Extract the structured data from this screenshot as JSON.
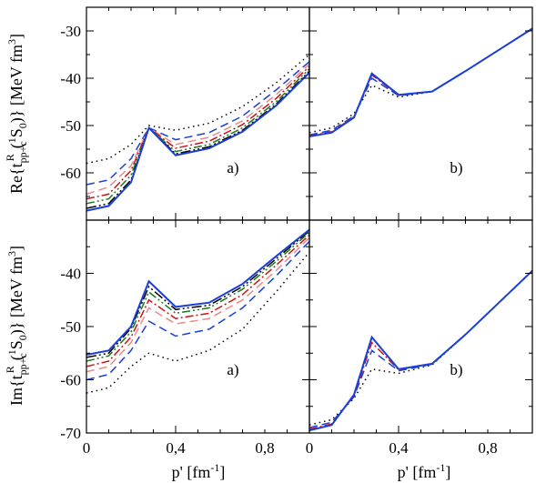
{
  "chart_data": {
    "type": "line",
    "x_ticks": [
      "0",
      "0,4",
      "0,8"
    ],
    "x_tick_values": [
      0,
      0.4,
      0.8
    ],
    "xlabel": "p' [fm-1]",
    "xlabel_parts": {
      "main": "p' [fm",
      "sup": "-1",
      "close": "]"
    },
    "ylabel_re": "Re{tpp+cR(1S0)} [MeV fm3]",
    "ylabel_im": "Im{tpp+cR(1S0)} [MeV fm3]",
    "ylabel_re_parts": {
      "pre": "Re{t",
      "sub": "pp+c",
      "sup": "R",
      "sup2": "1",
      "mid": "(",
      "sub2": "S",
      "sub3": "0",
      "post": ")} [MeV fm",
      "sup3": "3",
      "end": "]"
    },
    "ylabel_im_parts": {
      "pre": "Im{t",
      "sub": "pp+c",
      "sup": "R",
      "sup2": "1",
      "mid": "(",
      "sub2": "S",
      "sub3": "0",
      "post": ")} [MeV fm",
      "sup3": "3",
      "end": "]"
    },
    "panels": [
      {
        "label": "a)",
        "row": 0,
        "col": 0,
        "xlim": [
          0,
          1.0
        ],
        "ylim": [
          -70,
          -25
        ],
        "y_ticks": [
          -60,
          -50,
          -40,
          -30
        ],
        "series": [
          {
            "color": "#000000",
            "dash": "1.5,4",
            "points": [
              [
                0,
                -58
              ],
              [
                0.1,
                -57
              ],
              [
                0.2,
                -54
              ],
              [
                0.28,
                -50
              ],
              [
                0.4,
                -51
              ],
              [
                0.55,
                -49.5
              ],
              [
                0.7,
                -46
              ],
              [
                0.85,
                -41
              ],
              [
                1.0,
                -35
              ]
            ]
          },
          {
            "color": "#1a3fd6",
            "dash": "9,5",
            "points": [
              [
                0,
                -62.5
              ],
              [
                0.1,
                -61.5
              ],
              [
                0.2,
                -57
              ],
              [
                0.28,
                -50.5
              ],
              [
                0.4,
                -53
              ],
              [
                0.55,
                -51.5
              ],
              [
                0.7,
                -48
              ],
              [
                0.85,
                -42.5
              ],
              [
                1.0,
                -36.5
              ]
            ]
          },
          {
            "color": "#e88a88",
            "dash": "9,5",
            "points": [
              [
                0,
                -64.5
              ],
              [
                0.1,
                -63
              ],
              [
                0.2,
                -58.5
              ],
              [
                0.28,
                -50.5
              ],
              [
                0.4,
                -54
              ],
              [
                0.55,
                -52.5
              ],
              [
                0.7,
                -49
              ],
              [
                0.85,
                -43.5
              ],
              [
                1.0,
                -37
              ]
            ]
          },
          {
            "color": "#cc1111",
            "dash": "9,3,2,3",
            "points": [
              [
                0,
                -65.5
              ],
              [
                0.1,
                -64.5
              ],
              [
                0.2,
                -59.5
              ],
              [
                0.28,
                -50.5
              ],
              [
                0.4,
                -54.8
              ],
              [
                0.55,
                -53.3
              ],
              [
                0.7,
                -49.8
              ],
              [
                0.85,
                -44.3
              ],
              [
                1.0,
                -37.5
              ]
            ]
          },
          {
            "color": "#1b7a1b",
            "dash": "9,3,2,3,2,3",
            "points": [
              [
                0,
                -66.5
              ],
              [
                0.1,
                -65.5
              ],
              [
                0.2,
                -60.5
              ],
              [
                0.28,
                -50.5
              ],
              [
                0.4,
                -55.5
              ],
              [
                0.55,
                -54
              ],
              [
                0.7,
                -50.5
              ],
              [
                0.85,
                -45
              ],
              [
                1.0,
                -38
              ]
            ]
          },
          {
            "color": "#000000",
            "dash": "11,3,2,3,2,3",
            "points": [
              [
                0,
                -67.5
              ],
              [
                0.1,
                -66.5
              ],
              [
                0.2,
                -61.5
              ],
              [
                0.28,
                -50.5
              ],
              [
                0.4,
                -56
              ],
              [
                0.55,
                -54.5
              ],
              [
                0.7,
                -51
              ],
              [
                0.85,
                -45.5
              ],
              [
                1.0,
                -38.5
              ]
            ]
          },
          {
            "color": "#1a3fd6",
            "dash": "",
            "points": [
              [
                0,
                -68
              ],
              [
                0.1,
                -67
              ],
              [
                0.2,
                -62
              ],
              [
                0.28,
                -50.5
              ],
              [
                0.4,
                -56.3
              ],
              [
                0.55,
                -54.8
              ],
              [
                0.7,
                -51.3
              ],
              [
                0.85,
                -45.8
              ],
              [
                1.0,
                -38.8
              ]
            ]
          }
        ]
      },
      {
        "label": "b)",
        "row": 0,
        "col": 1,
        "xlim": [
          0,
          1.0
        ],
        "ylim": [
          -70,
          -25
        ],
        "y_ticks": [
          -60,
          -50,
          -40,
          -30
        ],
        "series": [
          {
            "color": "#000000",
            "dash": "1.5,4",
            "points": [
              [
                0,
                -51.5
              ],
              [
                0.1,
                -50.5
              ],
              [
                0.2,
                -47.5
              ],
              [
                0.28,
                -41.5
              ],
              [
                0.4,
                -44
              ],
              [
                0.55,
                -42.8
              ],
              [
                0.7,
                -38.5
              ],
              [
                0.85,
                -34
              ],
              [
                1.0,
                -29.5
              ]
            ]
          },
          {
            "color": "#1a3fd6",
            "dash": "9,5",
            "points": [
              [
                0,
                -52
              ],
              [
                0.1,
                -51
              ],
              [
                0.2,
                -48
              ],
              [
                0.28,
                -40
              ],
              [
                0.4,
                -43.7
              ],
              [
                0.55,
                -42.8
              ],
              [
                0.7,
                -38.5
              ],
              [
                0.85,
                -34
              ],
              [
                1.0,
                -29.5
              ]
            ]
          },
          {
            "color": "#cc1111",
            "dash": "9,3,2,3",
            "points": [
              [
                0,
                -52.2
              ],
              [
                0.1,
                -51.3
              ],
              [
                0.2,
                -48.2
              ],
              [
                0.28,
                -39.3
              ],
              [
                0.4,
                -43.6
              ],
              [
                0.55,
                -42.8
              ],
              [
                0.7,
                -38.5
              ],
              [
                0.85,
                -34
              ],
              [
                1.0,
                -29.5
              ]
            ]
          },
          {
            "color": "#1a3fd6",
            "dash": "",
            "points": [
              [
                0,
                -52.3
              ],
              [
                0.1,
                -51.5
              ],
              [
                0.2,
                -48.3
              ],
              [
                0.28,
                -39
              ],
              [
                0.4,
                -43.5
              ],
              [
                0.55,
                -42.8
              ],
              [
                0.7,
                -38.5
              ],
              [
                0.85,
                -34
              ],
              [
                1.0,
                -29.5
              ]
            ]
          }
        ]
      },
      {
        "label": "a)",
        "row": 1,
        "col": 0,
        "xlim": [
          0,
          1.0
        ],
        "ylim": [
          -70,
          -30
        ],
        "y_ticks": [
          -70,
          -60,
          -50,
          -40
        ],
        "series": [
          {
            "color": "#000000",
            "dash": "1.5,4",
            "points": [
              [
                0,
                -62.5
              ],
              [
                0.1,
                -61.5
              ],
              [
                0.2,
                -57.5
              ],
              [
                0.28,
                -55
              ],
              [
                0.4,
                -56.5
              ],
              [
                0.55,
                -54.5
              ],
              [
                0.7,
                -50.5
              ],
              [
                0.85,
                -43.5
              ],
              [
                1.0,
                -36
              ]
            ]
          },
          {
            "color": "#1a3fd6",
            "dash": "9,5",
            "points": [
              [
                0,
                -60
              ],
              [
                0.1,
                -59
              ],
              [
                0.2,
                -54.5
              ],
              [
                0.28,
                -49
              ],
              [
                0.4,
                -51.8
              ],
              [
                0.55,
                -50.5
              ],
              [
                0.7,
                -46.5
              ],
              [
                0.85,
                -40.5
              ],
              [
                1.0,
                -34
              ]
            ]
          },
          {
            "color": "#e88a88",
            "dash": "9,5",
            "points": [
              [
                0,
                -58.5
              ],
              [
                0.1,
                -57.5
              ],
              [
                0.2,
                -53
              ],
              [
                0.28,
                -46.5
              ],
              [
                0.4,
                -49.5
              ],
              [
                0.55,
                -48.5
              ],
              [
                0.7,
                -45
              ],
              [
                0.85,
                -39.5
              ],
              [
                1.0,
                -33.3
              ]
            ]
          },
          {
            "color": "#cc1111",
            "dash": "9,3,2,3",
            "points": [
              [
                0,
                -57.5
              ],
              [
                0.1,
                -56.5
              ],
              [
                0.2,
                -52
              ],
              [
                0.28,
                -45
              ],
              [
                0.4,
                -48.5
              ],
              [
                0.55,
                -47.5
              ],
              [
                0.7,
                -44
              ],
              [
                0.85,
                -38.5
              ],
              [
                1.0,
                -32.8
              ]
            ]
          },
          {
            "color": "#1b7a1b",
            "dash": "9,3,2,3,2,3",
            "points": [
              [
                0,
                -56.5
              ],
              [
                0.1,
                -55.5
              ],
              [
                0.2,
                -51
              ],
              [
                0.28,
                -43.5
              ],
              [
                0.4,
                -47.5
              ],
              [
                0.55,
                -46.5
              ],
              [
                0.7,
                -43
              ],
              [
                0.85,
                -37.8
              ],
              [
                1.0,
                -32.3
              ]
            ]
          },
          {
            "color": "#000000",
            "dash": "11,3,2,3,2,3",
            "points": [
              [
                0,
                -55.8
              ],
              [
                0.1,
                -55
              ],
              [
                0.2,
                -50.3
              ],
              [
                0.28,
                -42.5
              ],
              [
                0.4,
                -46.8
              ],
              [
                0.55,
                -46
              ],
              [
                0.7,
                -42.5
              ],
              [
                0.85,
                -37.3
              ],
              [
                1.0,
                -32
              ]
            ]
          },
          {
            "color": "#1a3fd6",
            "dash": "",
            "points": [
              [
                0,
                -55.3
              ],
              [
                0.1,
                -54.5
              ],
              [
                0.2,
                -50
              ],
              [
                0.28,
                -41.5
              ],
              [
                0.4,
                -46.3
              ],
              [
                0.55,
                -45.5
              ],
              [
                0.7,
                -42
              ],
              [
                0.85,
                -36.8
              ],
              [
                1.0,
                -31.8
              ]
            ]
          }
        ]
      },
      {
        "label": "b)",
        "row": 1,
        "col": 1,
        "xlim": [
          0,
          1.0
        ],
        "ylim": [
          -70,
          -30
        ],
        "y_ticks": [
          -70,
          -60,
          -50,
          -40
        ],
        "series": [
          {
            "color": "#000000",
            "dash": "1.5,4",
            "points": [
              [
                0,
                -68.5
              ],
              [
                0.1,
                -67.5
              ],
              [
                0.2,
                -63.5
              ],
              [
                0.28,
                -58
              ],
              [
                0.4,
                -58.8
              ],
              [
                0.55,
                -57.2
              ],
              [
                0.7,
                -51.5
              ],
              [
                0.85,
                -45.5
              ],
              [
                1.0,
                -39.5
              ]
            ]
          },
          {
            "color": "#1a3fd6",
            "dash": "9,5",
            "points": [
              [
                0,
                -69
              ],
              [
                0.1,
                -68
              ],
              [
                0.2,
                -63.2
              ],
              [
                0.28,
                -54.5
              ],
              [
                0.4,
                -58.3
              ],
              [
                0.55,
                -57.1
              ],
              [
                0.7,
                -51.5
              ],
              [
                0.85,
                -45.5
              ],
              [
                1.0,
                -39.5
              ]
            ]
          },
          {
            "color": "#cc1111",
            "dash": "9,3,2,3",
            "points": [
              [
                0,
                -69.3
              ],
              [
                0.1,
                -68.3
              ],
              [
                0.2,
                -63
              ],
              [
                0.28,
                -53
              ],
              [
                0.4,
                -58.1
              ],
              [
                0.55,
                -57
              ],
              [
                0.7,
                -51.5
              ],
              [
                0.85,
                -45.5
              ],
              [
                1.0,
                -39.5
              ]
            ]
          },
          {
            "color": "#1a3fd6",
            "dash": "",
            "points": [
              [
                0,
                -69.5
              ],
              [
                0.1,
                -68.5
              ],
              [
                0.2,
                -62.8
              ],
              [
                0.28,
                -52
              ],
              [
                0.4,
                -58
              ],
              [
                0.55,
                -57
              ],
              [
                0.7,
                -51.5
              ],
              [
                0.85,
                -45.5
              ],
              [
                1.0,
                -39.5
              ]
            ]
          }
        ]
      }
    ]
  }
}
